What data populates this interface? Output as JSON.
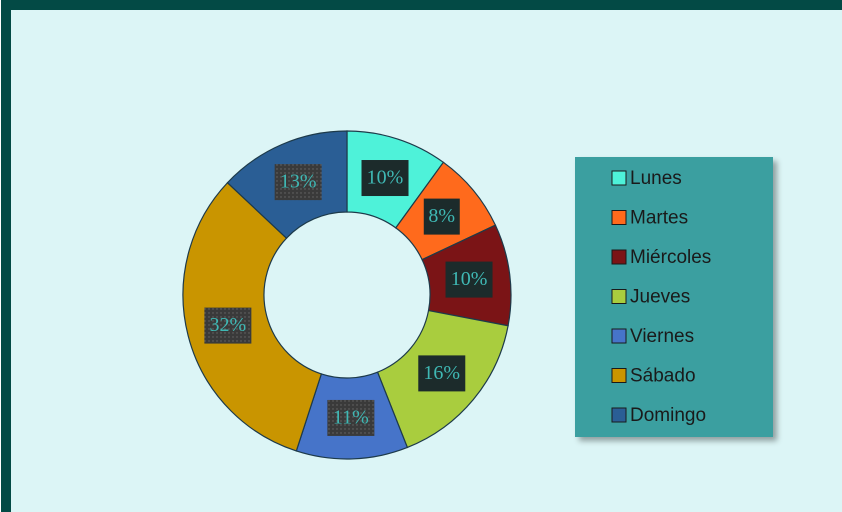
{
  "chart_data": {
    "type": "donut",
    "categories": [
      "Lunes",
      "Martes",
      "Miércoles",
      "Jueves",
      "Viernes",
      "Sábado",
      "Domingo"
    ],
    "values": [
      10,
      8,
      10,
      16,
      11,
      32,
      13
    ],
    "value_labels": [
      "10%",
      "8%",
      "10%",
      "16%",
      "11%",
      "32%",
      "13%"
    ],
    "colors": [
      "#4ef2d9",
      "#ff6a1c",
      "#7b1416",
      "#a9cd3e",
      "#4674c9",
      "#c99500",
      "#2a5e95"
    ],
    "legend": "right"
  }
}
